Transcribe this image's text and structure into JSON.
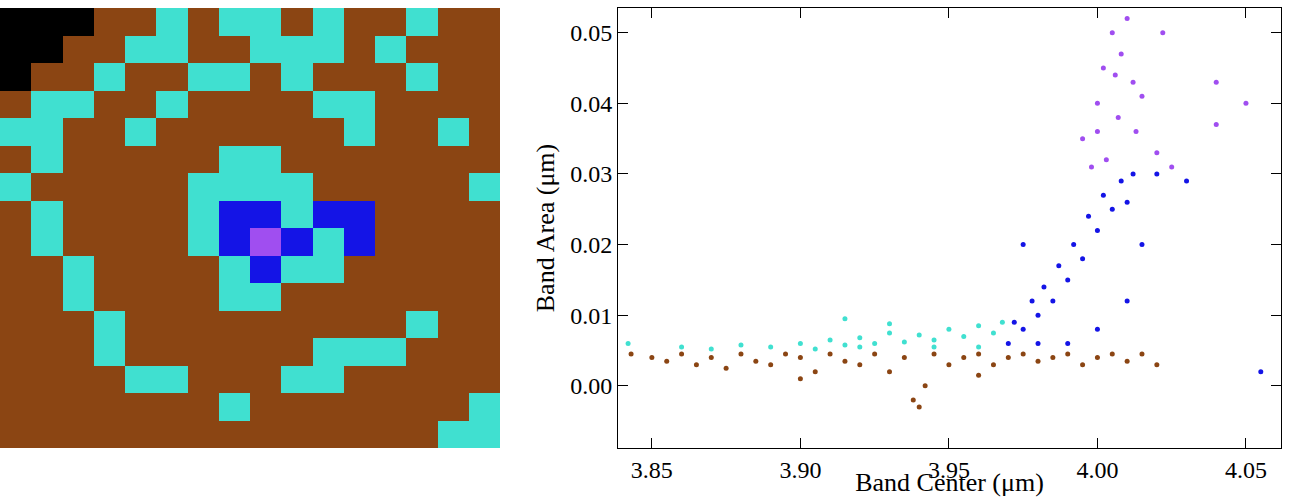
{
  "chart_data": [
    {
      "type": "heatmap",
      "tick_labels": false,
      "colors": [
        "#000000",
        "#8b4513",
        "#40e0d0",
        "#1414e6",
        "#a04ef0"
      ],
      "cells": [
        [
          0,
          0,
          0,
          1,
          1,
          2,
          1,
          2,
          2,
          1,
          2,
          1,
          1,
          2,
          1,
          1
        ],
        [
          0,
          0,
          1,
          1,
          2,
          2,
          1,
          1,
          2,
          2,
          2,
          1,
          2,
          1,
          1,
          1
        ],
        [
          0,
          1,
          1,
          2,
          1,
          1,
          2,
          2,
          1,
          2,
          1,
          1,
          1,
          2,
          1,
          1
        ],
        [
          1,
          2,
          2,
          1,
          1,
          2,
          1,
          1,
          1,
          1,
          2,
          2,
          1,
          1,
          1,
          1
        ],
        [
          2,
          2,
          1,
          1,
          2,
          1,
          1,
          1,
          1,
          1,
          1,
          2,
          1,
          1,
          2,
          1
        ],
        [
          1,
          2,
          1,
          1,
          1,
          1,
          1,
          2,
          2,
          1,
          1,
          1,
          1,
          1,
          1,
          1
        ],
        [
          2,
          1,
          1,
          1,
          1,
          1,
          2,
          2,
          2,
          2,
          1,
          1,
          1,
          1,
          1,
          2
        ],
        [
          1,
          2,
          1,
          1,
          1,
          1,
          2,
          3,
          3,
          2,
          3,
          3,
          1,
          1,
          1,
          1
        ],
        [
          1,
          2,
          1,
          1,
          1,
          1,
          2,
          3,
          4,
          3,
          2,
          3,
          1,
          1,
          1,
          1
        ],
        [
          1,
          1,
          2,
          1,
          1,
          1,
          1,
          2,
          3,
          2,
          2,
          1,
          1,
          1,
          1,
          1
        ],
        [
          1,
          1,
          2,
          1,
          1,
          1,
          1,
          2,
          2,
          1,
          1,
          1,
          1,
          1,
          1,
          1
        ],
        [
          1,
          1,
          1,
          2,
          1,
          1,
          1,
          1,
          1,
          1,
          1,
          1,
          1,
          2,
          1,
          1
        ],
        [
          1,
          1,
          1,
          2,
          1,
          1,
          1,
          1,
          1,
          1,
          2,
          2,
          2,
          1,
          1,
          1
        ],
        [
          1,
          1,
          1,
          1,
          2,
          2,
          1,
          1,
          1,
          2,
          2,
          1,
          1,
          1,
          1,
          1
        ],
        [
          1,
          1,
          1,
          1,
          1,
          1,
          1,
          2,
          1,
          1,
          1,
          1,
          1,
          1,
          1,
          2
        ],
        [
          1,
          1,
          1,
          1,
          1,
          1,
          1,
          1,
          1,
          1,
          1,
          1,
          1,
          1,
          2,
          2
        ]
      ]
    },
    {
      "type": "scatter",
      "marker": "circle",
      "x_label": "Band Center (μm)",
      "y_label": "Band Area (μm)",
      "xlim": [
        3.8386,
        4.0618
      ],
      "ylim": [
        -0.0088,
        0.0535
      ],
      "xticks": [
        3.85,
        {
          "value": 3.9,
          "label": "3.90"
        },
        3.95,
        {
          "value": 4,
          "label": "4.00"
        },
        4.05
      ],
      "yticks": [
        {
          "value": 0,
          "label": "0.00"
        },
        0.01,
        0.02,
        0.03,
        0.04,
        0.05
      ],
      "series": [
        {
          "color": "#8b4513",
          "x": [
            3.843,
            3.85,
            3.855,
            3.86,
            3.865,
            3.87,
            3.875,
            3.88,
            3.885,
            3.89,
            3.895,
            3.9,
            3.905,
            3.91,
            3.915,
            3.92,
            3.925,
            3.93,
            3.935,
            3.938,
            3.94,
            3.942,
            3.945,
            3.95,
            3.955,
            3.96,
            3.965,
            3.97,
            3.975,
            3.98,
            3.985,
            3.99,
            3.995,
            4.0,
            4.005,
            4.01,
            4.015,
            4.02,
            3.9,
            3.96
          ],
          "y": [
            0.0045,
            0.004,
            0.0035,
            0.0045,
            0.003,
            0.004,
            0.0025,
            0.0045,
            0.0035,
            0.003,
            0.0045,
            0.004,
            0.002,
            0.0045,
            0.0035,
            0.003,
            0.0045,
            0.002,
            0.004,
            -0.002,
            -0.003,
            0.0,
            0.0045,
            0.003,
            0.004,
            0.0045,
            0.003,
            0.004,
            0.0045,
            0.0035,
            0.004,
            0.0045,
            0.003,
            0.004,
            0.0045,
            0.0035,
            0.0045,
            0.003,
            0.001,
            0.0015
          ]
        },
        {
          "color": "#40e0d0",
          "x": [
            3.842,
            3.86,
            3.87,
            3.88,
            3.89,
            3.9,
            3.905,
            3.91,
            3.915,
            3.92,
            3.925,
            3.93,
            3.935,
            3.94,
            3.945,
            3.95,
            3.955,
            3.96,
            3.965,
            3.968,
            3.915,
            3.93,
            3.92,
            3.945,
            3.96
          ],
          "y": [
            0.006,
            0.0055,
            0.0052,
            0.0058,
            0.0055,
            0.006,
            0.0052,
            0.0065,
            0.0058,
            0.0068,
            0.006,
            0.0075,
            0.0062,
            0.0072,
            0.0065,
            0.008,
            0.007,
            0.0085,
            0.0075,
            0.009,
            0.0095,
            0.0088,
            0.0055,
            0.0055,
            0.0055
          ]
        },
        {
          "color": "#1414e6",
          "x": [
            3.97,
            3.972,
            3.975,
            3.978,
            3.98,
            3.982,
            3.985,
            3.987,
            3.99,
            3.992,
            3.995,
            3.997,
            4.0,
            4.002,
            4.005,
            4.008,
            4.01,
            4.012,
            4.015,
            3.99,
            4.0,
            4.01,
            3.98,
            4.02,
            4.03,
            4.055,
            3.975
          ],
          "y": [
            0.006,
            0.009,
            0.008,
            0.012,
            0.01,
            0.014,
            0.012,
            0.017,
            0.015,
            0.02,
            0.018,
            0.024,
            0.022,
            0.027,
            0.025,
            0.029,
            0.026,
            0.03,
            0.02,
            0.006,
            0.008,
            0.012,
            0.006,
            0.03,
            0.029,
            0.002,
            0.02
          ]
        },
        {
          "color": "#a04ef0",
          "x": [
            3.995,
            4.0,
            4.002,
            4.005,
            4.007,
            4.01,
            4.012,
            4.008,
            4.003,
            4.013,
            4.015,
            4.02,
            4.022,
            3.998,
            4.04,
            4.04,
            4.05,
            4.025,
            4.0,
            4.006
          ],
          "y": [
            0.035,
            0.04,
            0.045,
            0.05,
            0.038,
            0.052,
            0.043,
            0.047,
            0.032,
            0.036,
            0.041,
            0.033,
            0.05,
            0.031,
            0.043,
            0.037,
            0.04,
            0.031,
            0.036,
            0.044
          ]
        }
      ]
    }
  ]
}
